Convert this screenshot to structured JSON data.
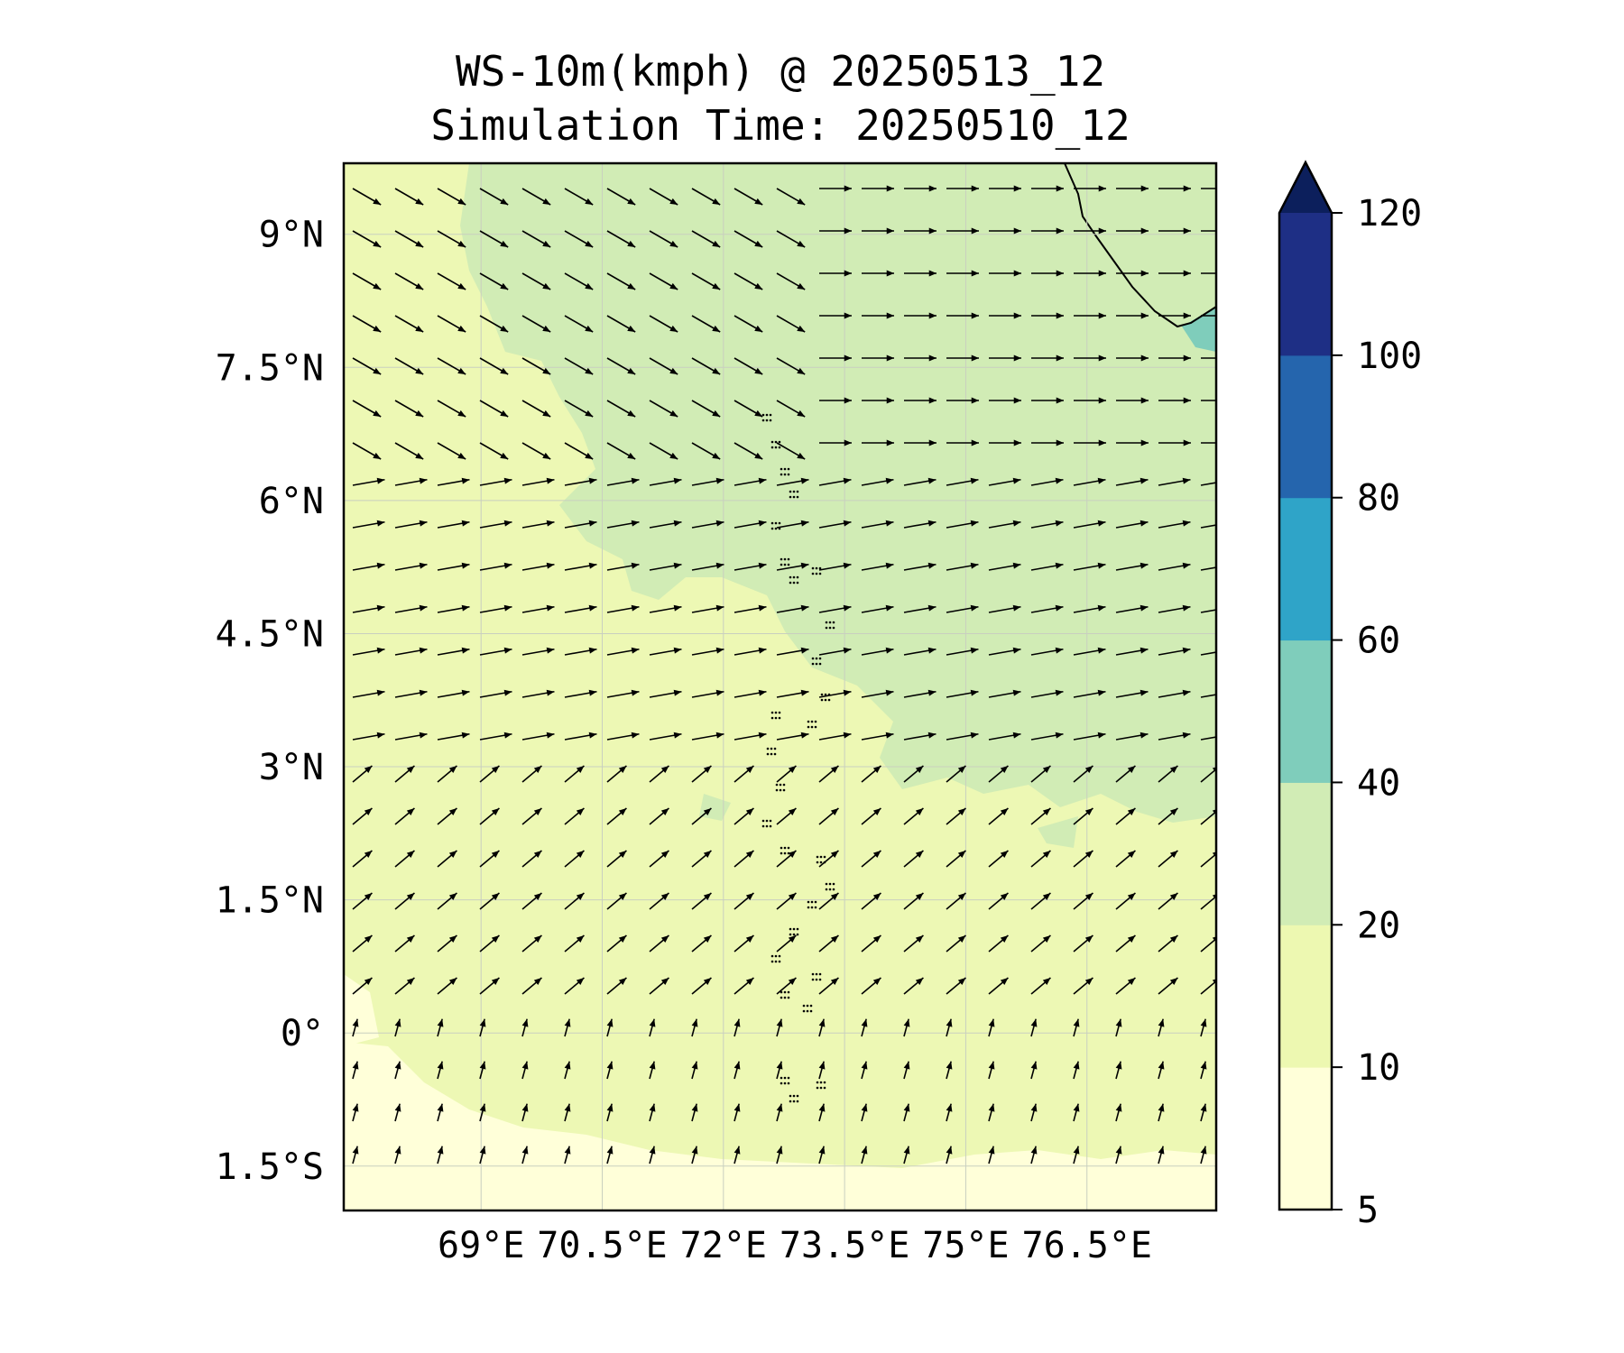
{
  "title": {
    "line1": "WS-10m(kmph) @ 20250513_12",
    "line2": "Simulation Time: 20250510_12"
  },
  "map": {
    "lon_range": [
      67.3,
      78.1
    ],
    "lat_range": [
      -2.0,
      9.8
    ],
    "lon_ticks": [
      {
        "value": 69.0,
        "label": "69°E"
      },
      {
        "value": 70.5,
        "label": "70.5°E"
      },
      {
        "value": 72.0,
        "label": "72°E"
      },
      {
        "value": 73.5,
        "label": "73.5°E"
      },
      {
        "value": 75.0,
        "label": "75°E"
      },
      {
        "value": 76.5,
        "label": "76.5°E"
      }
    ],
    "lat_ticks": [
      {
        "value": 9.0,
        "label": "9°N"
      },
      {
        "value": 7.5,
        "label": "7.5°N"
      },
      {
        "value": 6.0,
        "label": "6°N"
      },
      {
        "value": 4.5,
        "label": "4.5°N"
      },
      {
        "value": 3.0,
        "label": "3°N"
      },
      {
        "value": 1.5,
        "label": "1.5°N"
      },
      {
        "value": 0.0,
        "label": "0°"
      },
      {
        "value": -1.5,
        "label": "1.5°S"
      }
    ],
    "gridlines": true,
    "background_color": "#edf8bc"
  },
  "colorbar": {
    "levels": [
      {
        "min": 5,
        "max": 10,
        "color": "#ffffd9"
      },
      {
        "min": 10,
        "max": 20,
        "color": "#edf8b1"
      },
      {
        "min": 20,
        "max": 40,
        "color": "#d1ecb5"
      },
      {
        "min": 40,
        "max": 60,
        "color": "#7fcdbb"
      },
      {
        "min": 60,
        "max": 80,
        "color": "#2fa4c8"
      },
      {
        "min": 80,
        "max": 100,
        "color": "#2565ad"
      },
      {
        "min": 100,
        "max": 120,
        "color": "#1e2f85"
      }
    ],
    "extend_color": "#0c1f5c",
    "extend": "max",
    "tick_labels": [
      "5",
      "10",
      "20",
      "40",
      "60",
      "80",
      "100",
      "120"
    ]
  },
  "chart_data": {
    "type": "heatmap",
    "variable": "WS-10m(kmph)",
    "overlay": "wind vectors (quiver)",
    "regions": [
      {
        "speed_range_kmph": [
          10,
          20
        ],
        "description_zone": "western and southern sea area"
      },
      {
        "speed_range_kmph": [
          20,
          40
        ],
        "description_zone": "northeast sea area, north of ~3°N east of ~72°E"
      },
      {
        "speed_range_kmph": [
          40,
          60
        ],
        "description_zone": "small patch near 78°E, 8°N"
      },
      {
        "speed_range_kmph": [
          5,
          10
        ],
        "description_zone": "far southern edge near 1.5°S–2°S"
      }
    ],
    "wind_direction_pattern": [
      {
        "lat_band": [
          6.5,
          9.8
        ],
        "lon_band": [
          67.3,
          73.0
        ],
        "direction_deg_from_north": 120
      },
      {
        "lat_band": [
          6.5,
          9.8
        ],
        "lon_band": [
          73.0,
          78.1
        ],
        "direction_deg_from_north": 90
      },
      {
        "lat_band": [
          3.0,
          6.5
        ],
        "lon_band": [
          67.3,
          78.1
        ],
        "direction_deg_from_north": 80
      },
      {
        "lat_band": [
          0.0,
          3.0
        ],
        "lon_band": [
          67.3,
          78.1
        ],
        "direction_deg_from_north": 50
      },
      {
        "lat_band": [
          -2.0,
          0.0
        ],
        "lon_band": [
          67.3,
          78.1
        ],
        "direction_deg_from_north": 15
      }
    ]
  }
}
